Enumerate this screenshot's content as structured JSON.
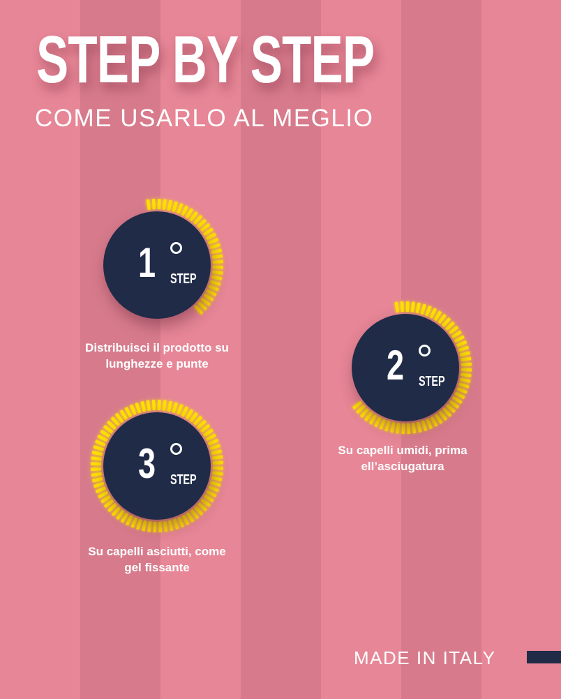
{
  "header": {
    "title": "STEP BY STEP",
    "subtitle": "COME USARLO AL MEGLIO"
  },
  "colors": {
    "background": "#e68696",
    "stripe": "#d77b8c",
    "disc": "#1f2b47",
    "ring": "#ffe100"
  },
  "steps": [
    {
      "number": "1",
      "label": "STEP",
      "description_line1": "Distribuisci il prodotto su",
      "description_line2": "lunghezze e punte",
      "progress": 0.42
    },
    {
      "number": "2",
      "label": "STEP",
      "description_line1": "Su capelli umidi, prima",
      "description_line2": "ell’asciugatura",
      "progress": 0.68
    },
    {
      "number": "3",
      "label": "STEP",
      "description_line1": "Su capelli asciutti, come",
      "description_line2": "gel fissante",
      "progress": 1.0
    }
  ],
  "footer": {
    "text": "MADE IN ITALY"
  }
}
